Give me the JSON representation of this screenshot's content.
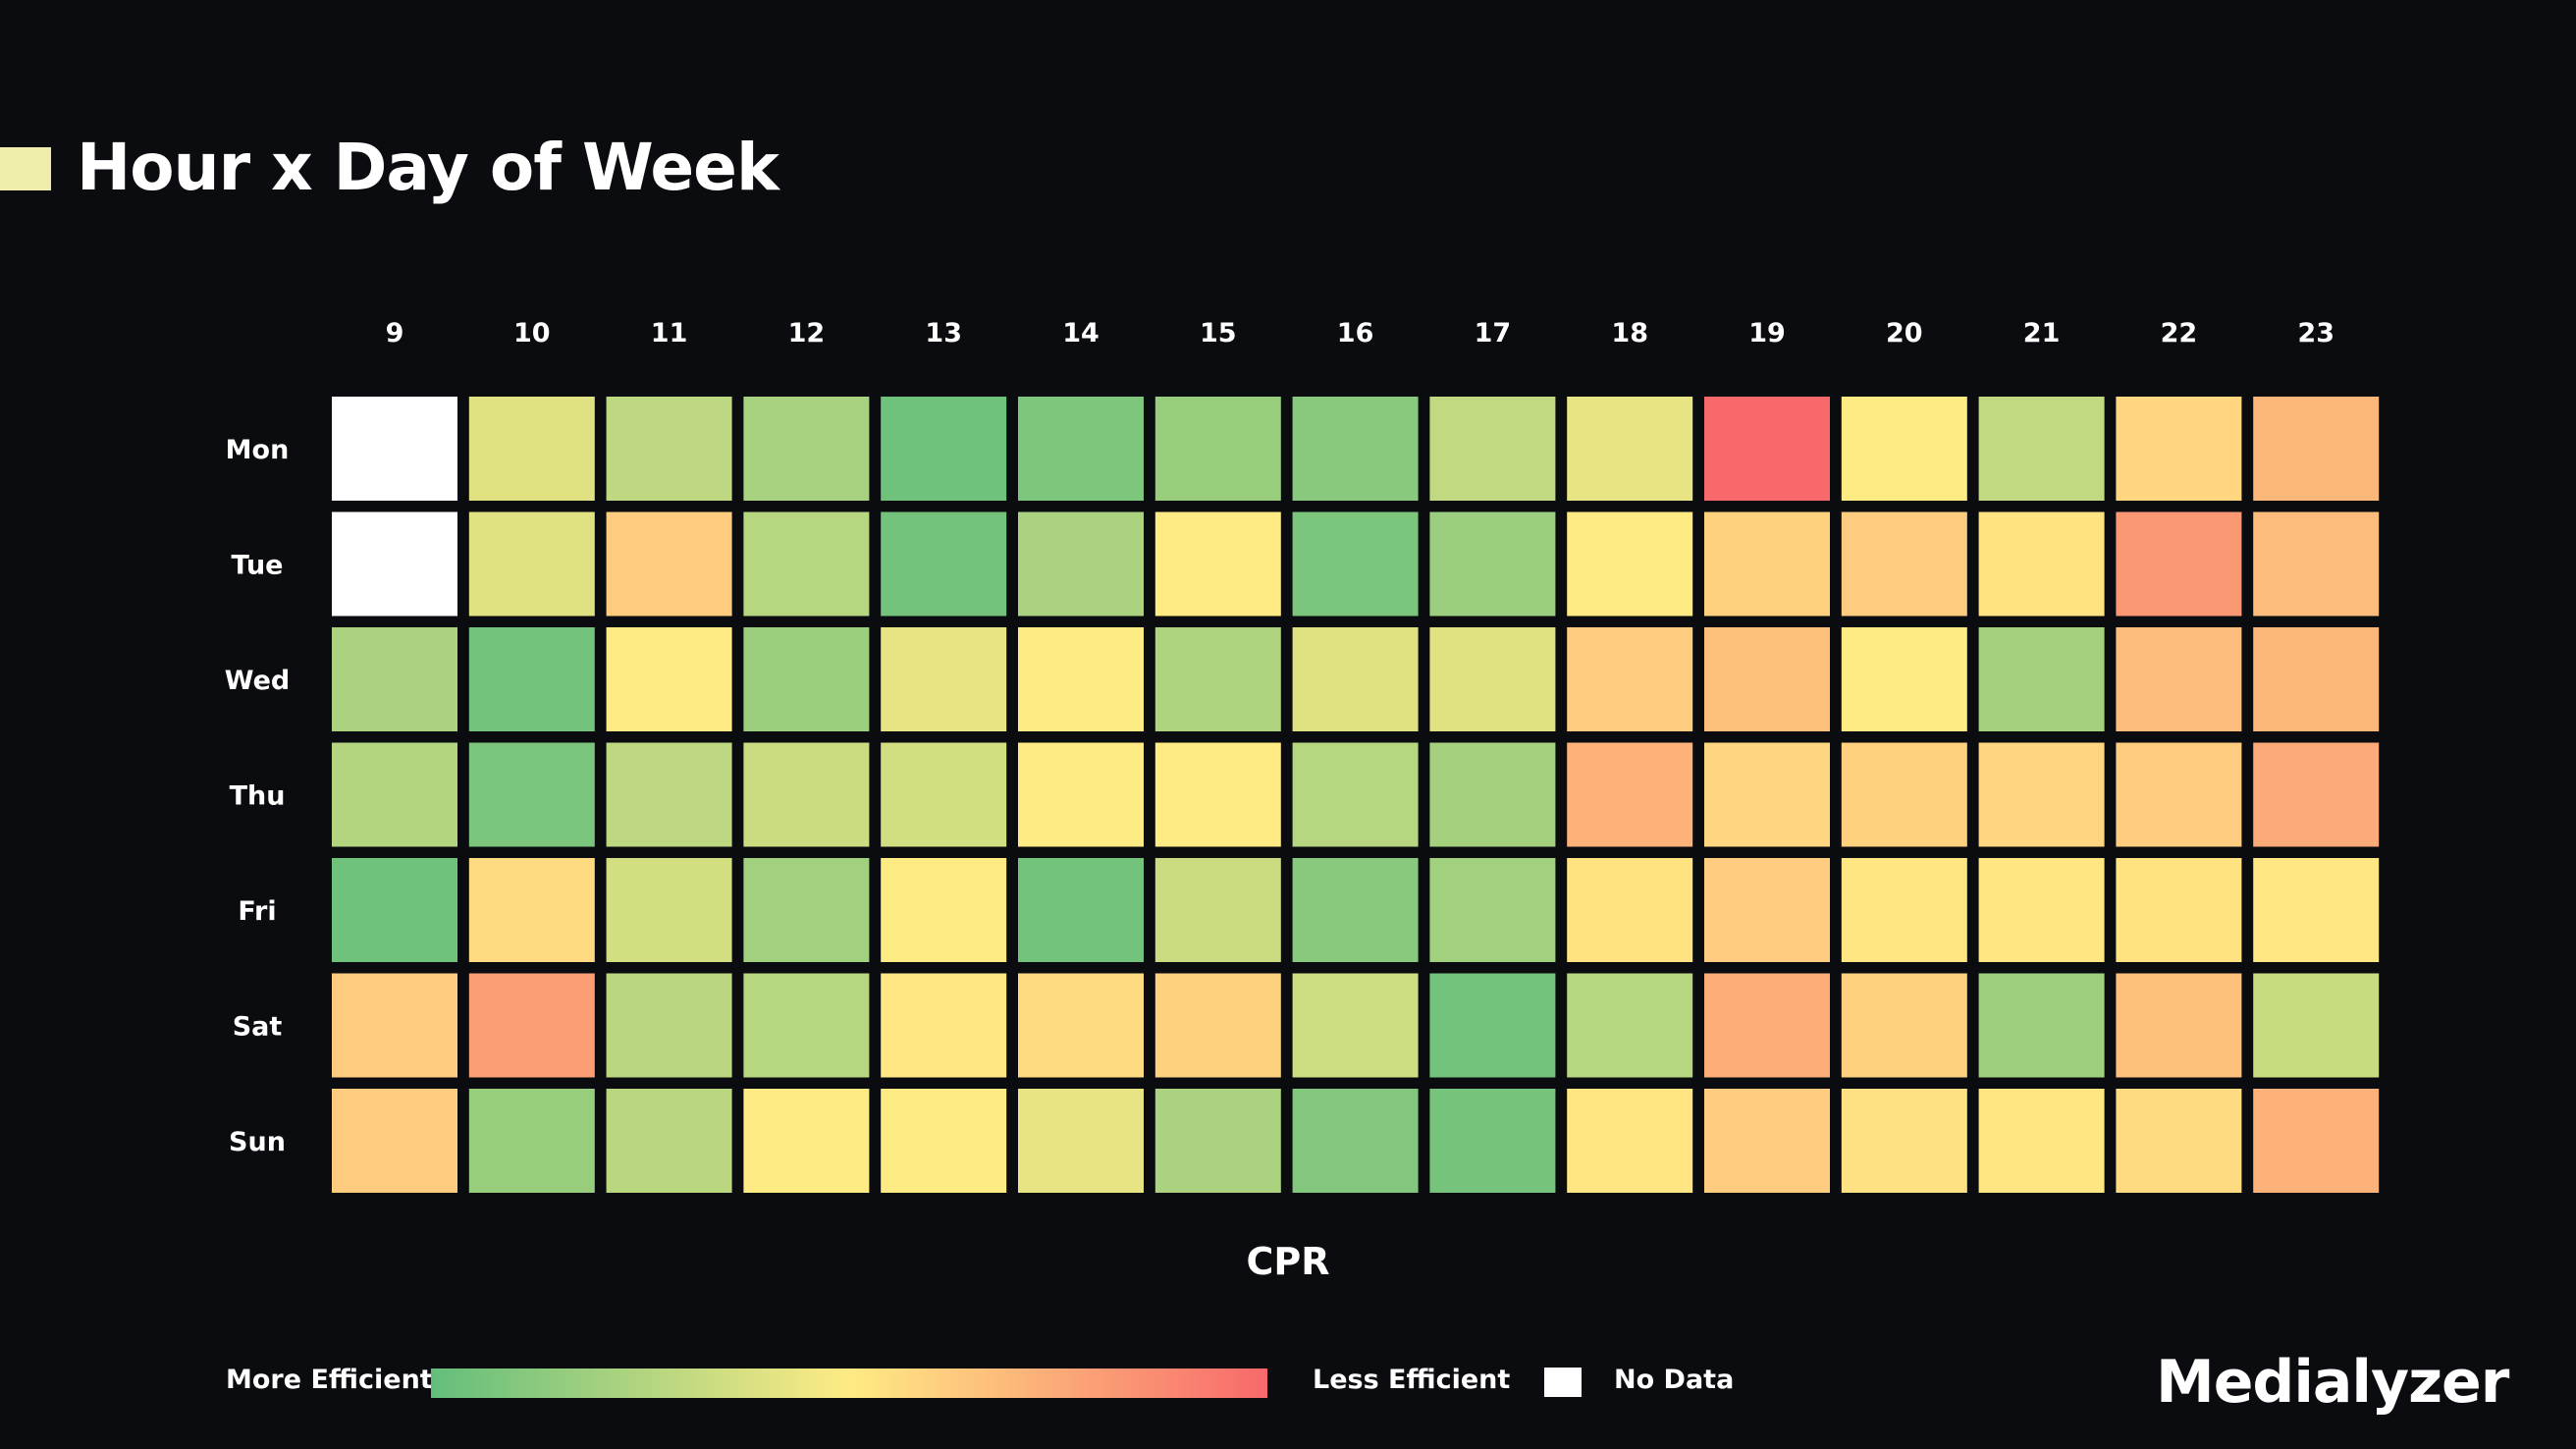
{
  "header": {
    "title": "Hour x Day of Week",
    "marker_color": "#eeeeaa"
  },
  "chart_data": {
    "type": "heatmap",
    "title": "Hour x Day of Week",
    "xlabel": "CPR",
    "x": [
      "9",
      "10",
      "11",
      "12",
      "13",
      "14",
      "15",
      "16",
      "17",
      "18",
      "19",
      "20",
      "21",
      "22",
      "23"
    ],
    "y": [
      "Mon",
      "Tue",
      "Wed",
      "Thu",
      "Fri",
      "Sat",
      "Sun"
    ],
    "value_scale": "0 = most efficient (green), 1 = least efficient (red); null = no data",
    "values": [
      [
        null,
        0.4,
        0.29,
        0.22,
        0.04,
        0.09,
        0.17,
        0.12,
        0.3,
        0.42,
        1.0,
        0.5,
        0.3,
        0.58,
        0.7
      ],
      [
        null,
        0.4,
        0.62,
        0.27,
        0.05,
        0.23,
        0.5,
        0.08,
        0.18,
        0.5,
        0.6,
        0.62,
        0.53,
        0.82,
        0.68
      ],
      [
        0.23,
        0.05,
        0.5,
        0.18,
        0.42,
        0.5,
        0.24,
        0.4,
        0.4,
        0.62,
        0.66,
        0.5,
        0.21,
        0.68,
        0.7
      ],
      [
        0.26,
        0.08,
        0.29,
        0.33,
        0.36,
        0.5,
        0.5,
        0.27,
        0.21,
        0.72,
        0.58,
        0.6,
        0.58,
        0.62,
        0.75
      ],
      [
        0.04,
        0.56,
        0.36,
        0.2,
        0.5,
        0.05,
        0.33,
        0.12,
        0.2,
        0.53,
        0.62,
        0.52,
        0.52,
        0.53,
        0.51
      ],
      [
        0.62,
        0.8,
        0.28,
        0.27,
        0.51,
        0.56,
        0.6,
        0.34,
        0.05,
        0.27,
        0.74,
        0.6,
        0.19,
        0.66,
        0.32
      ],
      [
        0.62,
        0.17,
        0.28,
        0.5,
        0.5,
        0.42,
        0.23,
        0.1,
        0.06,
        0.52,
        0.62,
        0.54,
        0.52,
        0.56,
        0.72
      ]
    ],
    "colorscale": [
      "#63be7b",
      "#ffeb84",
      "#f8696b"
    ],
    "no_data_color": "#ffffff",
    "legend": {
      "low_label": "More Efficient",
      "high_label": "Less Efficient",
      "no_data_label": "No Data",
      "placement": "bottom"
    }
  },
  "brand": {
    "name": "Medialyzer"
  }
}
